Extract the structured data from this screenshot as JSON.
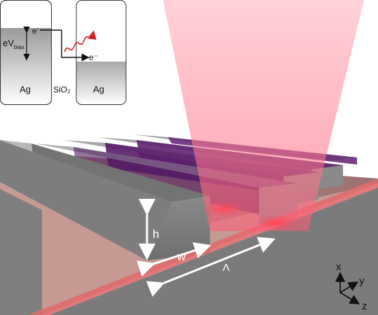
{
  "inset": {
    "left_label": "Ag",
    "right_label": "Ag",
    "barrier_label": "SiO₂",
    "bias_main": "eV",
    "bias_sub": "bias",
    "electron_main": "e",
    "electron_sup": "-",
    "electron_out": "e⁻"
  },
  "dimensions": {
    "height": "h",
    "width": "w",
    "period": "Λ"
  },
  "axes": {
    "x": "x",
    "y": "y",
    "z": "z"
  },
  "colors": {
    "beam": "#ff3b54",
    "ridge": "#8c8c8c",
    "purple": "#6a2a7a",
    "photon": "#d62020"
  },
  "icons": [
    "emitted-photon-wavy-arrow",
    "tunneling-electron-arrow"
  ]
}
